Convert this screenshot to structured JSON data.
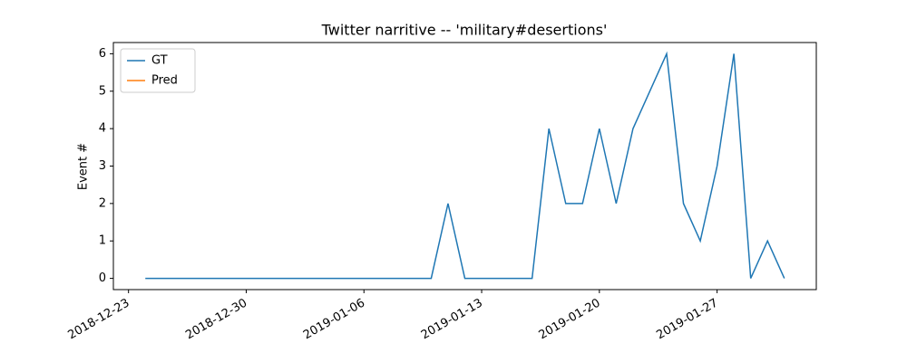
{
  "chart_data": {
    "type": "line",
    "title": "Twitter narritive -- 'military#desertions'",
    "y_label": "Event #",
    "x": [
      "2018-12-24",
      "2018-12-25",
      "2018-12-26",
      "2018-12-27",
      "2018-12-28",
      "2018-12-29",
      "2018-12-30",
      "2018-12-31",
      "2019-01-01",
      "2019-01-02",
      "2019-01-03",
      "2019-01-04",
      "2019-01-05",
      "2019-01-06",
      "2019-01-07",
      "2019-01-08",
      "2019-01-09",
      "2019-01-10",
      "2019-01-11",
      "2019-01-12",
      "2019-01-13",
      "2019-01-14",
      "2019-01-15",
      "2019-01-16",
      "2019-01-17",
      "2019-01-18",
      "2019-01-19",
      "2019-01-20",
      "2019-01-21",
      "2019-01-22",
      "2019-01-23",
      "2019-01-24",
      "2019-01-25",
      "2019-01-26",
      "2019-01-27",
      "2019-01-28",
      "2019-01-29",
      "2019-01-30",
      "2019-01-31"
    ],
    "series": [
      {
        "name": "GT",
        "color": "#1f77b4",
        "values": [
          0,
          0,
          0,
          0,
          0,
          0,
          0,
          0,
          0,
          0,
          0,
          0,
          0,
          0,
          0,
          0,
          0,
          0,
          2,
          0,
          0,
          0,
          0,
          0,
          4,
          2,
          2,
          4,
          2,
          4,
          5,
          6,
          2,
          1,
          3,
          6,
          0,
          1,
          0
        ]
      },
      {
        "name": "Pred",
        "color": "#ff7f0e",
        "values": [
          null,
          null,
          null,
          null,
          null,
          null,
          null,
          null,
          null,
          null,
          null,
          null,
          null,
          null,
          null,
          null,
          null,
          null,
          null,
          null,
          null,
          null,
          null,
          null,
          null,
          null,
          null,
          null,
          null,
          null,
          null,
          null,
          null,
          null,
          null,
          null,
          null,
          null,
          null
        ]
      }
    ],
    "xlim": [
      "2018-12-22T02:24",
      "2019-02-01T21:36"
    ],
    "xticks": [
      "2018-12-23",
      "2018-12-30",
      "2019-01-06",
      "2019-01-13",
      "2019-01-20",
      "2019-01-27"
    ],
    "ylim": [
      -0.3,
      6.3
    ],
    "yticks": [
      0,
      1,
      2,
      3,
      4,
      5,
      6
    ],
    "legend": "upper left",
    "grid": false
  }
}
